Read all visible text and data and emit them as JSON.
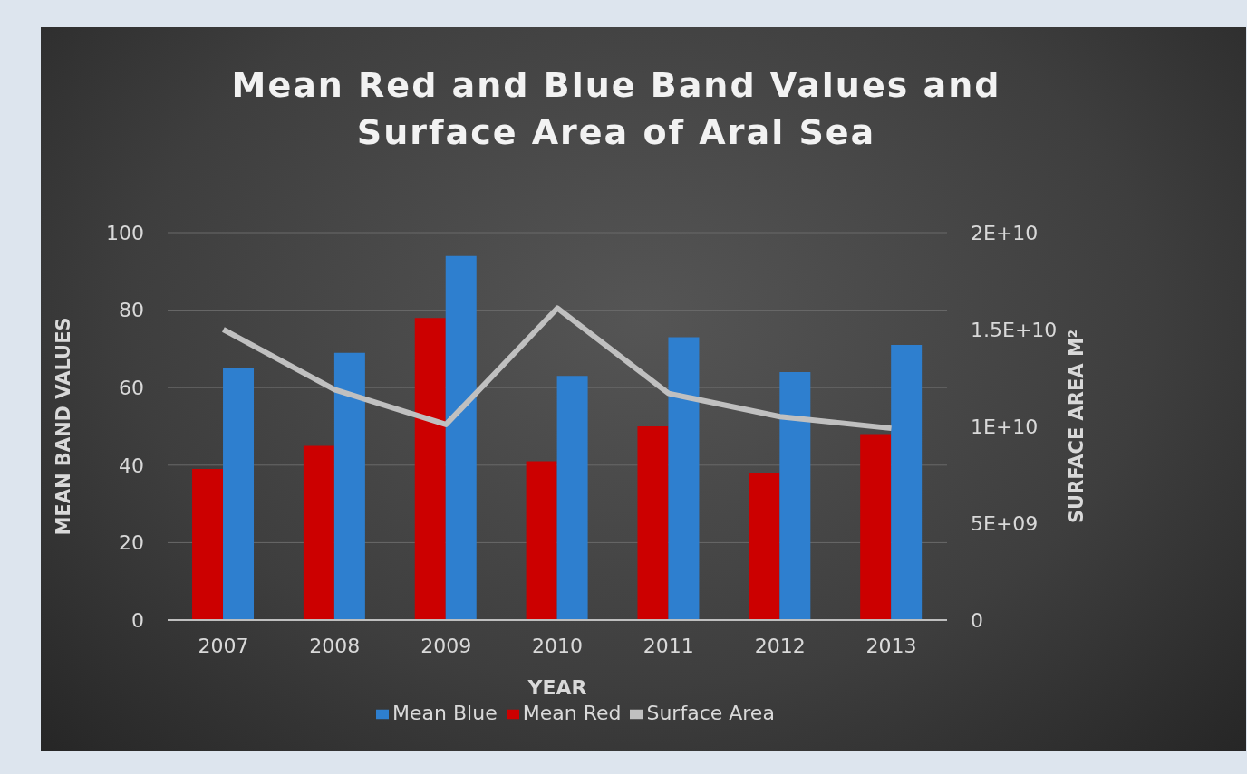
{
  "chart_data": {
    "type": "bar",
    "title": "Mean Red and Blue Band Values and Surface Area of Aral Sea",
    "xlabel": "YEAR",
    "ylabel": "MEAN BAND VALUES",
    "y2label": "SURFACE AREA M²",
    "categories": [
      "2007",
      "2008",
      "2009",
      "2010",
      "2011",
      "2012",
      "2013"
    ],
    "series": [
      {
        "name": "Mean Red",
        "color": "#cc0000",
        "values": [
          39,
          45,
          78,
          41,
          50,
          38,
          48
        ]
      },
      {
        "name": "Mean Blue",
        "color": "#2e7fcf",
        "values": [
          65,
          69,
          94,
          63,
          73,
          64,
          71
        ]
      },
      {
        "name": "Surface Area",
        "type": "line",
        "axis": "y2",
        "color": "#c0c0c0",
        "values": [
          15000000000,
          11900000000,
          10100000000,
          16100000000,
          11700000000,
          10500000000,
          9900000000
        ]
      }
    ],
    "ylim": [
      0,
      100
    ],
    "yticks": [
      0,
      20,
      40,
      60,
      80,
      100
    ],
    "y2lim": [
      0,
      20000000000
    ],
    "y2ticks": [
      0,
      {
        "value": 5000000000,
        "label": "5E+09"
      },
      {
        "value": 10000000000,
        "label": "1E+10"
      },
      {
        "value": 15000000000,
        "label": "1.5E+10"
      },
      {
        "value": 20000000000,
        "label": "2E+10"
      }
    ],
    "grid": "y",
    "legend": "bottom",
    "marker": "none",
    "line_style": "solid"
  }
}
